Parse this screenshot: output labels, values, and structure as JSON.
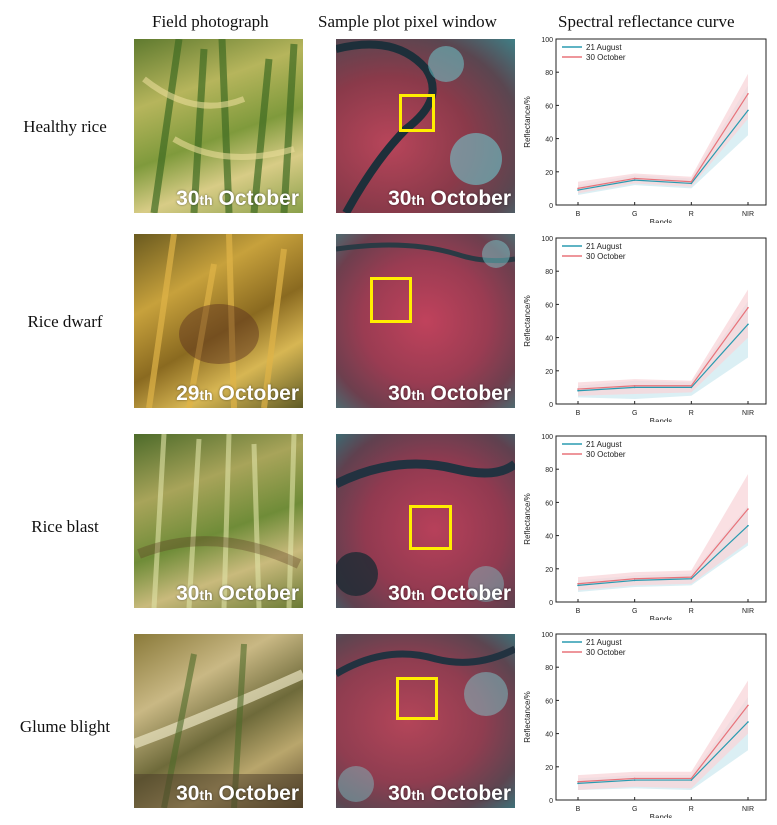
{
  "headers": {
    "field": "Field photograph",
    "pixel": "Sample plot pixel window",
    "spectral": "Spectral reflectance curve"
  },
  "rows": [
    {
      "label": "Healthy rice",
      "photo_day": "30",
      "photo_suffix": "th",
      "photo_month": "October",
      "sat_day": "30",
      "sat_suffix": "th",
      "sat_month": "October"
    },
    {
      "label": "Rice dwarf",
      "photo_day": "29",
      "photo_suffix": "th",
      "photo_month": "October",
      "sat_day": "30",
      "sat_suffix": "th",
      "sat_month": "October"
    },
    {
      "label": "Rice blast",
      "photo_day": "30",
      "photo_suffix": "th",
      "photo_month": "October",
      "sat_day": "30",
      "sat_suffix": "th",
      "sat_month": "October"
    },
    {
      "label": "Glume blight",
      "photo_day": "30",
      "photo_suffix": "th",
      "photo_month": "October",
      "sat_day": "30",
      "sat_suffix": "th",
      "sat_month": "October"
    }
  ],
  "colors": {
    "aug": "#2a9bb0",
    "oct": "#e8737a",
    "aug_band": "#cfeaf0",
    "oct_band": "#f8d6d9",
    "box": "#ffee00"
  },
  "chart_data": [
    {
      "type": "line",
      "panel": "Healthy rice",
      "categories": [
        "B",
        "G",
        "R",
        "NIR"
      ],
      "xlabel": "Bands",
      "ylabel": "Reflectance/%",
      "ylim": [
        0,
        100
      ],
      "yticks": [
        0,
        20,
        40,
        60,
        80,
        100
      ],
      "legend_position": "top-left",
      "series": [
        {
          "name": "21 August",
          "values": [
            9,
            15,
            13,
            57
          ],
          "lower": [
            6,
            12,
            10,
            42
          ],
          "upper": [
            12,
            18,
            16,
            72
          ]
        },
        {
          "name": "30 October",
          "values": [
            10,
            16,
            14,
            67
          ],
          "lower": [
            7,
            13,
            11,
            52
          ],
          "upper": [
            14,
            19,
            17,
            79
          ]
        }
      ]
    },
    {
      "type": "line",
      "panel": "Rice dwarf",
      "categories": [
        "B",
        "G",
        "R",
        "NIR"
      ],
      "xlabel": "Bands",
      "ylabel": "Reflectance/%",
      "ylim": [
        0,
        100
      ],
      "yticks": [
        0,
        20,
        40,
        60,
        80,
        100
      ],
      "legend_position": "top-left",
      "series": [
        {
          "name": "21 August",
          "values": [
            8,
            10,
            10,
            48
          ],
          "lower": [
            4,
            3,
            5,
            28
          ],
          "upper": [
            11,
            14,
            13,
            62
          ]
        },
        {
          "name": "30 October",
          "values": [
            9,
            11,
            11,
            58
          ],
          "lower": [
            5,
            6,
            7,
            40
          ],
          "upper": [
            13,
            15,
            14,
            69
          ]
        }
      ]
    },
    {
      "type": "line",
      "panel": "Rice blast",
      "categories": [
        "B",
        "G",
        "R",
        "NIR"
      ],
      "xlabel": "Bands",
      "ylabel": "Reflectance/%",
      "ylim": [
        0,
        100
      ],
      "yticks": [
        0,
        20,
        40,
        60,
        80,
        100
      ],
      "legend_position": "top-left",
      "series": [
        {
          "name": "21 August",
          "values": [
            10,
            13,
            14,
            46
          ],
          "lower": [
            6,
            9,
            10,
            34
          ],
          "upper": [
            13,
            16,
            17,
            58
          ]
        },
        {
          "name": "30 October",
          "values": [
            11,
            14,
            15,
            56
          ],
          "lower": [
            7,
            10,
            11,
            36
          ],
          "upper": [
            15,
            18,
            19,
            77
          ]
        }
      ]
    },
    {
      "type": "line",
      "panel": "Glume blight",
      "categories": [
        "B",
        "G",
        "R",
        "NIR"
      ],
      "xlabel": "Bands",
      "ylabel": "Reflectance/%",
      "ylim": [
        0,
        100
      ],
      "yticks": [
        0,
        20,
        40,
        60,
        80,
        100
      ],
      "legend_position": "top-left",
      "series": [
        {
          "name": "21 August",
          "values": [
            10,
            12,
            12,
            47
          ],
          "lower": [
            6,
            7,
            6,
            30
          ],
          "upper": [
            13,
            15,
            15,
            62
          ]
        },
        {
          "name": "30 October",
          "values": [
            11,
            13,
            13,
            57
          ],
          "lower": [
            6,
            8,
            7,
            40
          ],
          "upper": [
            15,
            17,
            17,
            72
          ]
        }
      ]
    }
  ]
}
